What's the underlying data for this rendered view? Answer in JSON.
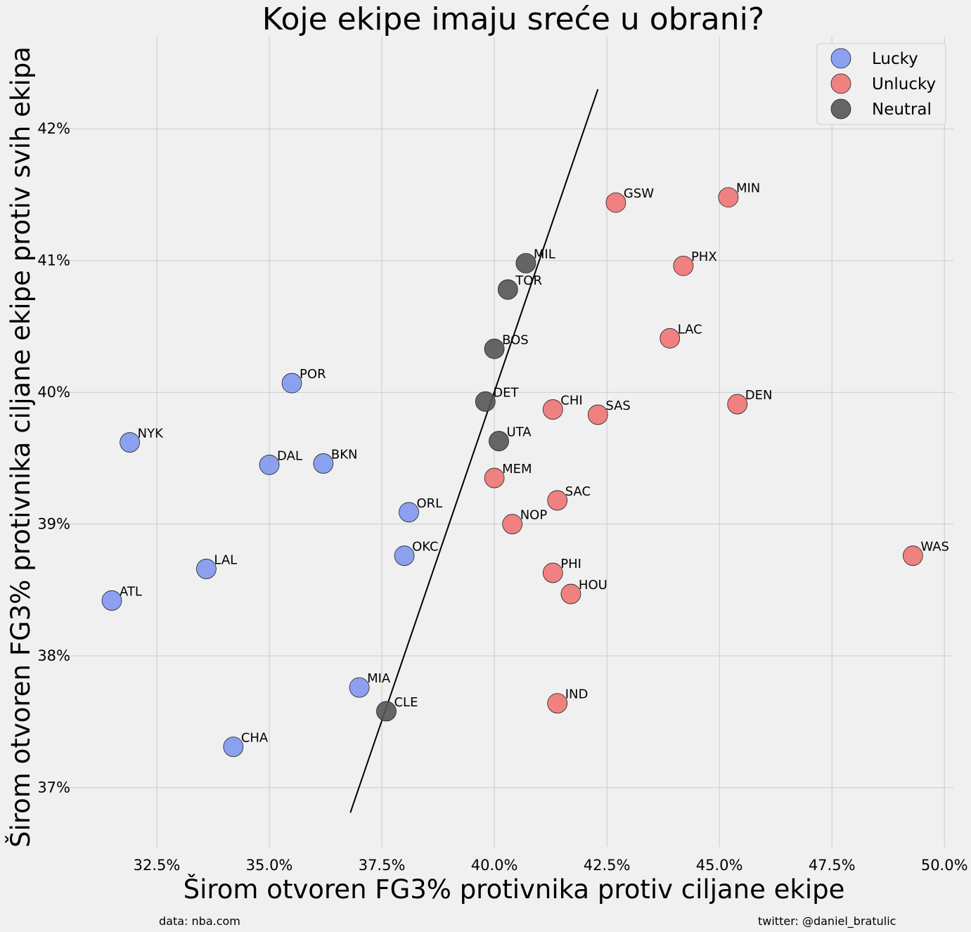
{
  "chart_data": {
    "type": "scatter",
    "title": "Koje ekipe imaju sreće u obrani?",
    "xlabel": "Širom otvoren FG3% protivnika protiv ciljane ekipe",
    "ylabel": "Širom otvoren FG3% protivnika ciljane ekipe protiv svih ekipa",
    "xlim": [
      30.5,
      50.2
    ],
    "ylim": [
      36.55,
      42.7
    ],
    "xticks": [
      32.5,
      35.0,
      37.5,
      40.0,
      42.5,
      45.0,
      47.5,
      50.0
    ],
    "xtick_labels": [
      "32.5%",
      "35.0%",
      "37.5%",
      "40.0%",
      "42.5%",
      "45.0%",
      "47.5%",
      "50.0%"
    ],
    "yticks": [
      37,
      38,
      39,
      40,
      41,
      42
    ],
    "ytick_labels": [
      "37%",
      "38%",
      "39%",
      "40%",
      "41%",
      "42%"
    ],
    "grid": true,
    "legend_position": "top-right",
    "colors": {
      "Lucky": "#7f98ee",
      "Unlucky": "#f07474",
      "Neutral": "#555555"
    },
    "series": [
      {
        "name": "Lucky",
        "points": [
          {
            "label": "NYK",
            "x": 31.9,
            "y": 39.62
          },
          {
            "label": "POR",
            "x": 35.5,
            "y": 40.07
          },
          {
            "label": "DAL",
            "x": 35.0,
            "y": 39.45
          },
          {
            "label": "BKN",
            "x": 36.2,
            "y": 39.46
          },
          {
            "label": "ORL",
            "x": 38.1,
            "y": 39.09
          },
          {
            "label": "OKC",
            "x": 38.0,
            "y": 38.76
          },
          {
            "label": "LAL",
            "x": 33.6,
            "y": 38.66
          },
          {
            "label": "ATL",
            "x": 31.5,
            "y": 38.42
          },
          {
            "label": "MIA",
            "x": 37.0,
            "y": 37.76
          },
          {
            "label": "CHA",
            "x": 34.2,
            "y": 37.31
          }
        ]
      },
      {
        "name": "Unlucky",
        "points": [
          {
            "label": "GSW",
            "x": 42.7,
            "y": 41.44
          },
          {
            "label": "MIN",
            "x": 45.2,
            "y": 41.48
          },
          {
            "label": "PHX",
            "x": 44.2,
            "y": 40.96
          },
          {
            "label": "LAC",
            "x": 43.9,
            "y": 40.41
          },
          {
            "label": "DEN",
            "x": 45.4,
            "y": 39.91
          },
          {
            "label": "CHI",
            "x": 41.3,
            "y": 39.87
          },
          {
            "label": "SAS",
            "x": 42.3,
            "y": 39.83
          },
          {
            "label": "MEM",
            "x": 40.0,
            "y": 39.35
          },
          {
            "label": "SAC",
            "x": 41.4,
            "y": 39.18
          },
          {
            "label": "NOP",
            "x": 40.4,
            "y": 39.0
          },
          {
            "label": "WAS",
            "x": 49.3,
            "y": 38.76
          },
          {
            "label": "PHI",
            "x": 41.3,
            "y": 38.63
          },
          {
            "label": "HOU",
            "x": 41.7,
            "y": 38.47
          },
          {
            "label": "IND",
            "x": 41.4,
            "y": 37.64
          }
        ]
      },
      {
        "name": "Neutral",
        "points": [
          {
            "label": "MIL",
            "x": 40.7,
            "y": 40.98
          },
          {
            "label": "TOR",
            "x": 40.3,
            "y": 40.78
          },
          {
            "label": "BOS",
            "x": 40.0,
            "y": 40.33
          },
          {
            "label": "DET",
            "x": 39.8,
            "y": 39.93
          },
          {
            "label": "UTA",
            "x": 40.1,
            "y": 39.63
          },
          {
            "label": "CLE",
            "x": 37.6,
            "y": 37.58
          }
        ]
      }
    ],
    "trend_line": {
      "x": [
        36.8,
        42.3
      ],
      "y": [
        36.81,
        42.3
      ]
    },
    "footer_left": "data: nba.com",
    "footer_right": "twitter: @daniel_bratulic"
  }
}
